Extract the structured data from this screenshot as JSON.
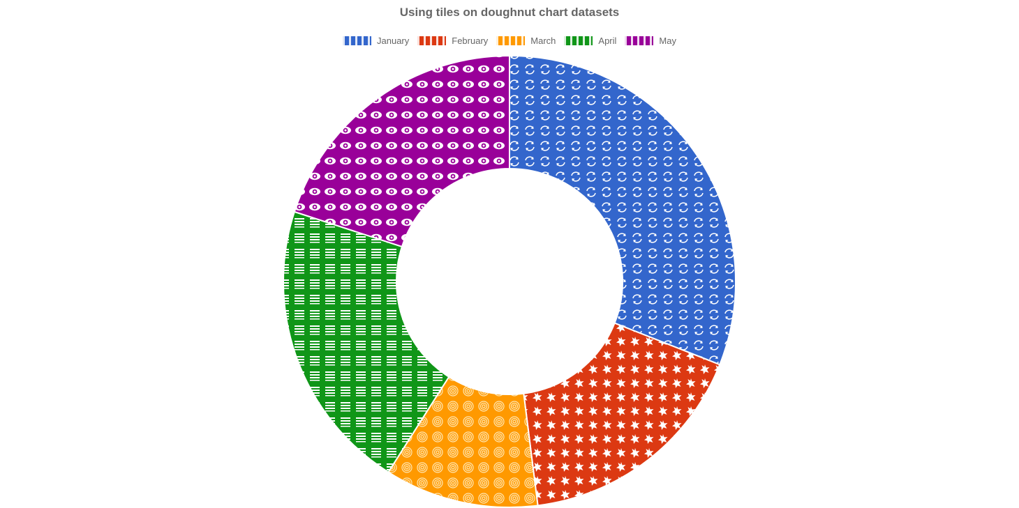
{
  "chart_data": {
    "type": "doughnut",
    "title": "Using tiles on doughnut chart datasets",
    "categories": [
      "January",
      "February",
      "March",
      "April",
      "May"
    ],
    "values": [
      31,
      17,
      11,
      21,
      20
    ],
    "colors": [
      "#3366cc",
      "#dc3912",
      "#ff9900",
      "#109618",
      "#990099"
    ],
    "tile_icons": [
      "refresh-arrows-icon",
      "asterisk-icon",
      "fingerprint-icon",
      "lines-icon",
      "eye-icon"
    ],
    "legend_position": "top",
    "cutout_percent": 50
  }
}
